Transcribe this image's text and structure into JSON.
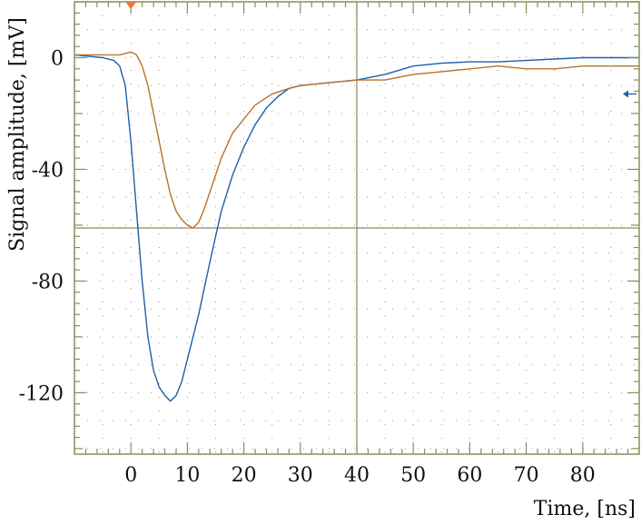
{
  "chart_data": {
    "type": "line",
    "title": "",
    "xlabel": "Time, [ns]",
    "ylabel": "Signal amplitude, [mV]",
    "xlim": [
      -10,
      90
    ],
    "ylim": [
      -142,
      20
    ],
    "x_ticks": [
      "0",
      "10",
      "20",
      "30",
      "40",
      "50",
      "60",
      "70",
      "80"
    ],
    "x_tick_values": [
      0,
      10,
      20,
      30,
      40,
      50,
      60,
      70,
      80
    ],
    "y_ticks": [
      "0",
      "-40",
      "-80",
      "-120"
    ],
    "y_tick_values": [
      0,
      -40,
      -80,
      -120
    ],
    "grid": true,
    "frame_color": "#8c8c5a",
    "grid_color": "#777766",
    "markers": {
      "trigger_x": 0,
      "trigger_color": "#e8793a",
      "level_y": -13,
      "level_color": "#1f5fa8"
    },
    "series": [
      {
        "color": "#1f5fa8",
        "points": [
          [
            -10,
            1
          ],
          [
            -5,
            0
          ],
          [
            -3,
            -1
          ],
          [
            -2,
            -3
          ],
          [
            -1,
            -10
          ],
          [
            0,
            -30
          ],
          [
            1,
            -55
          ],
          [
            2,
            -80
          ],
          [
            3,
            -100
          ],
          [
            4,
            -112
          ],
          [
            5,
            -118
          ],
          [
            6,
            -121
          ],
          [
            7,
            -123
          ],
          [
            8,
            -121
          ],
          [
            9,
            -116
          ],
          [
            10,
            -108
          ],
          [
            12,
            -92
          ],
          [
            14,
            -73
          ],
          [
            16,
            -55
          ],
          [
            18,
            -42
          ],
          [
            20,
            -32
          ],
          [
            22,
            -24
          ],
          [
            24,
            -18
          ],
          [
            26,
            -14
          ],
          [
            28,
            -11
          ],
          [
            30,
            -10
          ],
          [
            35,
            -9
          ],
          [
            40,
            -8
          ],
          [
            45,
            -6
          ],
          [
            50,
            -3
          ],
          [
            55,
            -2
          ],
          [
            60,
            -1.5
          ],
          [
            65,
            -1.5
          ],
          [
            70,
            -1
          ],
          [
            75,
            -0.5
          ],
          [
            80,
            0
          ],
          [
            85,
            0
          ],
          [
            90,
            0
          ]
        ]
      },
      {
        "color": "#b8732a",
        "points": [
          [
            -10,
            1
          ],
          [
            -5,
            1
          ],
          [
            -2,
            1
          ],
          [
            0,
            2
          ],
          [
            1,
            1
          ],
          [
            2,
            -3
          ],
          [
            3,
            -10
          ],
          [
            4,
            -20
          ],
          [
            5,
            -30
          ],
          [
            6,
            -40
          ],
          [
            7,
            -49
          ],
          [
            8,
            -55
          ],
          [
            9,
            -58
          ],
          [
            10,
            -60
          ],
          [
            11,
            -61
          ],
          [
            12,
            -59
          ],
          [
            13,
            -54
          ],
          [
            14,
            -48
          ],
          [
            15,
            -42
          ],
          [
            16,
            -36
          ],
          [
            18,
            -27
          ],
          [
            20,
            -22
          ],
          [
            22,
            -17
          ],
          [
            25,
            -13
          ],
          [
            28,
            -11
          ],
          [
            30,
            -10
          ],
          [
            35,
            -9
          ],
          [
            40,
            -8
          ],
          [
            45,
            -8
          ],
          [
            50,
            -6
          ],
          [
            55,
            -5
          ],
          [
            60,
            -4
          ],
          [
            65,
            -3
          ],
          [
            70,
            -4
          ],
          [
            75,
            -4
          ],
          [
            80,
            -3
          ],
          [
            85,
            -3
          ],
          [
            90,
            -3
          ]
        ]
      }
    ]
  }
}
